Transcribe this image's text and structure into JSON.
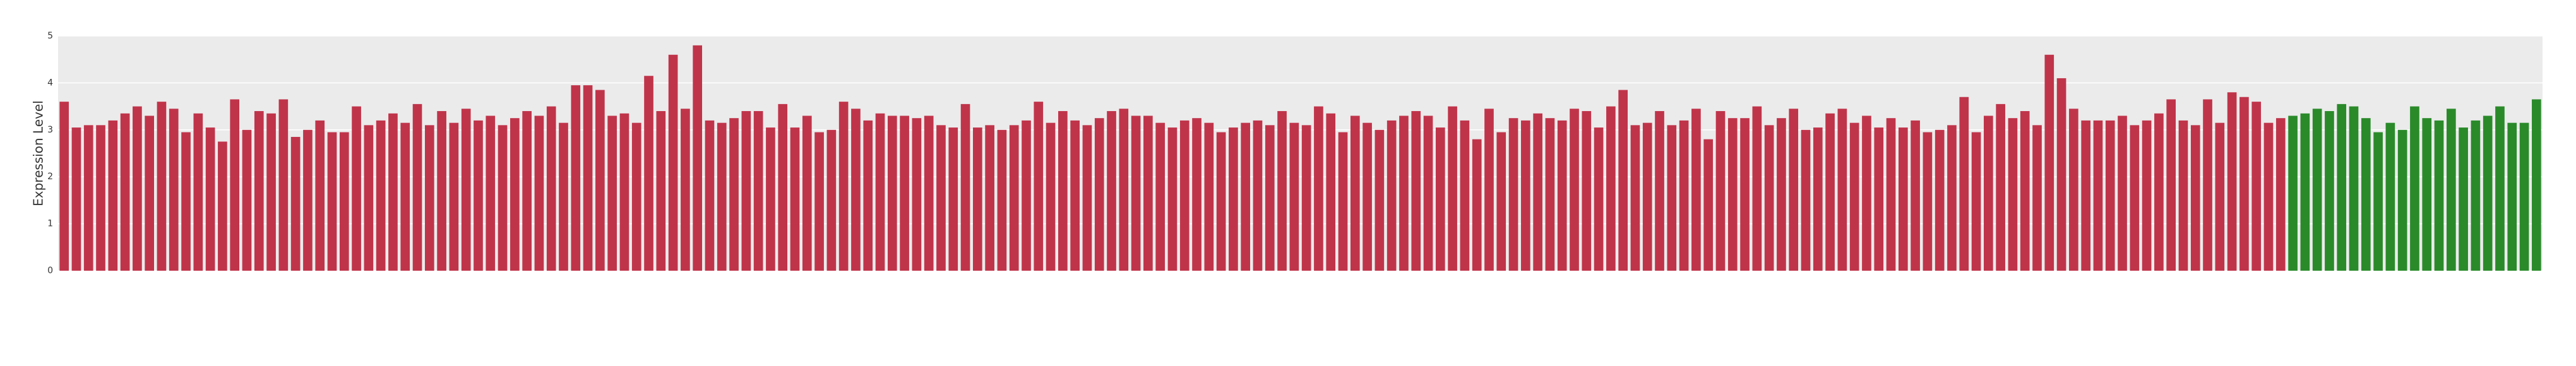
{
  "chart_data": {
    "type": "bar",
    "ylabel": "Expression Level",
    "ylim": [
      0,
      5
    ],
    "yticks": [
      0,
      1,
      2,
      3,
      4,
      5
    ],
    "grid": true,
    "categories": [
      null,
      null,
      null,
      null,
      null,
      null,
      null,
      null,
      null,
      null,
      null,
      null,
      null,
      null,
      null,
      null,
      null,
      null,
      null,
      null,
      null,
      null,
      null,
      null,
      null,
      null,
      null,
      null,
      null,
      null,
      null,
      null,
      null,
      null,
      null,
      null,
      null,
      null,
      null,
      null,
      null,
      null,
      null,
      null,
      null,
      null,
      null,
      null,
      null,
      null,
      null,
      null,
      null,
      null,
      null,
      null,
      null,
      null,
      null,
      null,
      null,
      null,
      null,
      null,
      null,
      null,
      null,
      null,
      null,
      null,
      null,
      null,
      null,
      null,
      null,
      null,
      null,
      null,
      null,
      null,
      null,
      null,
      null,
      null,
      null,
      null,
      null,
      null,
      null,
      null,
      null,
      null,
      null,
      null,
      null,
      null,
      null,
      null,
      null,
      null,
      null,
      null,
      null,
      null,
      null,
      null,
      null,
      null,
      null,
      null,
      null,
      null,
      null,
      null,
      null,
      null,
      null,
      null,
      null,
      null,
      null,
      null,
      null,
      null,
      null,
      null,
      null,
      null,
      null,
      null,
      null,
      null,
      null,
      null,
      null,
      null,
      null,
      null,
      null,
      null,
      null,
      null,
      null,
      null,
      null,
      null,
      null,
      null,
      null,
      null,
      null,
      null,
      null,
      null,
      null,
      null,
      null,
      null,
      null,
      null,
      null,
      null,
      null,
      null,
      null,
      null,
      null,
      null,
      null,
      null,
      null,
      null,
      null,
      null,
      null,
      null,
      null,
      null,
      null,
      null,
      null,
      null,
      null,
      null,
      null,
      null,
      null,
      null,
      null,
      null,
      null,
      null,
      null,
      null,
      null,
      null,
      null,
      null,
      null,
      null,
      null,
      null,
      null,
      null
    ],
    "values": [
      3.6,
      3.05,
      3.1,
      3.1,
      3.2,
      3.35,
      3.5,
      3.3,
      3.6,
      3.45,
      2.95,
      3.35,
      3.05,
      2.75,
      3.65,
      3.0,
      3.4,
      3.35,
      3.65,
      2.85,
      3.0,
      3.2,
      2.95,
      2.95,
      3.5,
      3.1,
      3.2,
      3.35,
      3.15,
      3.55,
      3.1,
      3.4,
      3.15,
      3.45,
      3.2,
      3.3,
      3.1,
      3.25,
      3.4,
      3.3,
      3.5,
      3.15,
      3.95,
      3.95,
      3.85,
      3.3,
      3.35,
      3.15,
      4.15,
      3.4,
      4.6,
      3.45,
      4.8,
      3.2,
      3.15,
      3.25,
      3.4,
      3.4,
      3.05,
      3.55,
      3.05,
      3.3,
      2.95,
      3.0,
      3.6,
      3.45,
      3.2,
      3.35,
      3.3,
      3.3,
      3.25,
      3.3,
      3.1,
      3.05,
      3.55,
      3.05,
      3.1,
      3.0,
      3.1,
      3.2,
      3.6,
      3.15,
      3.4,
      3.2,
      3.1,
      3.25,
      3.4,
      3.45,
      3.3,
      3.3,
      3.15,
      3.05,
      3.2,
      3.25,
      3.15,
      2.95,
      3.05,
      3.15,
      3.2,
      3.1,
      3.4,
      3.15,
      3.1,
      3.5,
      3.35,
      2.95,
      3.3,
      3.15,
      3.0,
      3.2,
      3.3,
      3.4,
      3.3,
      3.05,
      3.5,
      3.2,
      2.8,
      3.45,
      2.95,
      3.25,
      3.2,
      3.35,
      3.25,
      3.2,
      3.45,
      3.4,
      3.05,
      3.5,
      3.85,
      3.1,
      3.15,
      3.4,
      3.1,
      3.2,
      3.45,
      2.8,
      3.4,
      3.25,
      3.25,
      3.5,
      3.1,
      3.25,
      3.45,
      3.0,
      3.05,
      3.35,
      3.45,
      3.15,
      3.3,
      3.05,
      3.25,
      3.05,
      3.2,
      2.95,
      3.0,
      3.1,
      3.7,
      2.95,
      3.3,
      3.55,
      3.25,
      3.4,
      3.1,
      4.6,
      4.1,
      3.45,
      3.2,
      3.2,
      3.2,
      3.3,
      3.1,
      3.2,
      3.35,
      3.65,
      3.2,
      3.1,
      3.65,
      3.15,
      3.8,
      3.7,
      3.6,
      3.15,
      3.25,
      3.3,
      3.35,
      3.45,
      3.4,
      3.55,
      3.5,
      3.25,
      2.95,
      3.15,
      3.0,
      3.5,
      3.25,
      3.2,
      3.45,
      3.05,
      3.2,
      3.3,
      3.5,
      3.15,
      3.15,
      3.65
    ],
    "colors": [
      "#c0344a",
      "#c0344a",
      "#c0344a",
      "#c0344a",
      "#c0344a",
      "#c0344a",
      "#c0344a",
      "#c0344a",
      "#c0344a",
      "#c0344a",
      "#c0344a",
      "#c0344a",
      "#c0344a",
      "#c0344a",
      "#c0344a",
      "#c0344a",
      "#c0344a",
      "#c0344a",
      "#c0344a",
      "#c0344a",
      "#c0344a",
      "#c0344a",
      "#c0344a",
      "#c0344a",
      "#c0344a",
      "#c0344a",
      "#c0344a",
      "#c0344a",
      "#c0344a",
      "#c0344a",
      "#c0344a",
      "#c0344a",
      "#c0344a",
      "#c0344a",
      "#c0344a",
      "#c0344a",
      "#c0344a",
      "#c0344a",
      "#c0344a",
      "#c0344a",
      "#c0344a",
      "#c0344a",
      "#c0344a",
      "#c0344a",
      "#c0344a",
      "#c0344a",
      "#c0344a",
      "#c0344a",
      "#c0344a",
      "#c0344a",
      "#c0344a",
      "#c0344a",
      "#c0344a",
      "#c0344a",
      "#c0344a",
      "#c0344a",
      "#c0344a",
      "#c0344a",
      "#c0344a",
      "#c0344a",
      "#c0344a",
      "#c0344a",
      "#c0344a",
      "#c0344a",
      "#c0344a",
      "#c0344a",
      "#c0344a",
      "#c0344a",
      "#c0344a",
      "#c0344a",
      "#c0344a",
      "#c0344a",
      "#c0344a",
      "#c0344a",
      "#c0344a",
      "#c0344a",
      "#c0344a",
      "#c0344a",
      "#c0344a",
      "#c0344a",
      "#c0344a",
      "#c0344a",
      "#c0344a",
      "#c0344a",
      "#c0344a",
      "#c0344a",
      "#c0344a",
      "#c0344a",
      "#c0344a",
      "#c0344a",
      "#c0344a",
      "#c0344a",
      "#c0344a",
      "#c0344a",
      "#c0344a",
      "#c0344a",
      "#c0344a",
      "#c0344a",
      "#c0344a",
      "#c0344a",
      "#c0344a",
      "#c0344a",
      "#c0344a",
      "#c0344a",
      "#c0344a",
      "#c0344a",
      "#c0344a",
      "#c0344a",
      "#c0344a",
      "#c0344a",
      "#c0344a",
      "#c0344a",
      "#c0344a",
      "#c0344a",
      "#c0344a",
      "#c0344a",
      "#c0344a",
      "#c0344a",
      "#c0344a",
      "#c0344a",
      "#c0344a",
      "#c0344a",
      "#c0344a",
      "#c0344a",
      "#c0344a",
      "#c0344a",
      "#c0344a",
      "#c0344a",
      "#c0344a",
      "#c0344a",
      "#c0344a",
      "#c0344a",
      "#c0344a",
      "#c0344a",
      "#c0344a",
      "#c0344a",
      "#c0344a",
      "#c0344a",
      "#c0344a",
      "#c0344a",
      "#c0344a",
      "#c0344a",
      "#c0344a",
      "#c0344a",
      "#c0344a",
      "#c0344a",
      "#c0344a",
      "#c0344a",
      "#c0344a",
      "#c0344a",
      "#c0344a",
      "#c0344a",
      "#c0344a",
      "#c0344a",
      "#c0344a",
      "#c0344a",
      "#c0344a",
      "#c0344a",
      "#c0344a",
      "#c0344a",
      "#c0344a",
      "#c0344a",
      "#c0344a",
      "#c0344a",
      "#c0344a",
      "#c0344a",
      "#c0344a",
      "#c0344a",
      "#c0344a",
      "#c0344a",
      "#c0344a",
      "#c0344a",
      "#c0344a",
      "#c0344a",
      "#c0344a",
      "#c0344a",
      "#c0344a",
      "#c0344a",
      "#c0344a",
      "#c0344a",
      "#c0344a",
      "#c0344a",
      "#c0344a",
      "#2a8a2a",
      "#2a8a2a",
      "#2a8a2a",
      "#2a8a2a",
      "#2a8a2a",
      "#2a8a2a",
      "#2a8a2a",
      "#2a8a2a",
      "#2a8a2a",
      "#2a8a2a",
      "#2a8a2a",
      "#2a8a2a",
      "#2a8a2a",
      "#2a8a2a",
      "#2a8a2a",
      "#2a8a2a",
      "#2a8a2a",
      "#2a8a2a",
      "#2a8a2a",
      "#2a8a2a",
      "#2a8a2a"
    ]
  }
}
